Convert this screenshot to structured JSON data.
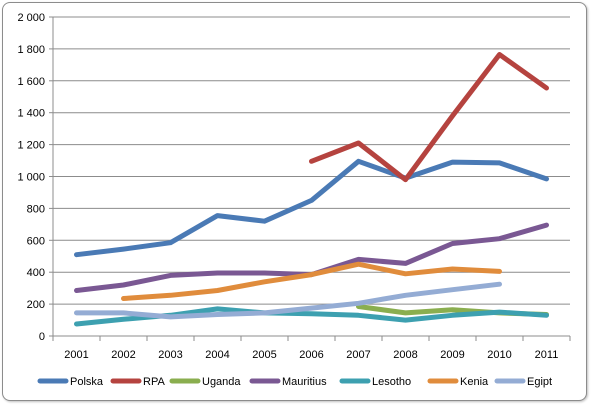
{
  "chart_data": {
    "type": "line",
    "title": "",
    "xlabel": "",
    "ylabel": "",
    "categories": [
      "2001",
      "2002",
      "2003",
      "2004",
      "2005",
      "2006",
      "2007",
      "2008",
      "2009",
      "2010",
      "2011"
    ],
    "ylim": [
      0,
      2000
    ],
    "yticks": [
      0,
      200,
      400,
      600,
      800,
      1000,
      1200,
      1400,
      1600,
      1800,
      2000
    ],
    "ytick_labels": [
      "0",
      "200",
      "400",
      "600",
      "800",
      "1 000",
      "1 200",
      "1 400",
      "1 600",
      "1 800",
      "2 000"
    ],
    "grid": "horizontal",
    "legend_position": "bottom",
    "series": [
      {
        "name": "Polska",
        "color": "#4a7ab5",
        "values": [
          510,
          545,
          585,
          755,
          720,
          850,
          1095,
          990,
          1090,
          1085,
          985
        ]
      },
      {
        "name": "RPA",
        "color": "#b5433f",
        "values": [
          null,
          null,
          null,
          null,
          null,
          1095,
          1210,
          980,
          1380,
          1765,
          1555
        ]
      },
      {
        "name": "Uganda",
        "color": "#8aae4f",
        "values": [
          null,
          null,
          null,
          null,
          null,
          null,
          185,
          145,
          165,
          145,
          135
        ]
      },
      {
        "name": "Mauritius",
        "color": "#7a5893",
        "values": [
          285,
          320,
          380,
          395,
          395,
          385,
          480,
          455,
          580,
          610,
          695
        ]
      },
      {
        "name": "Lesotho",
        "color": "#3da0b0",
        "values": [
          75,
          105,
          130,
          170,
          145,
          140,
          130,
          100,
          130,
          150,
          130
        ]
      },
      {
        "name": "Kenia",
        "color": "#e08c3c",
        "values": [
          null,
          235,
          255,
          285,
          340,
          385,
          450,
          390,
          420,
          405,
          null
        ]
      },
      {
        "name": "Egipt",
        "color": "#94acd4",
        "values": [
          145,
          145,
          120,
          135,
          145,
          175,
          205,
          255,
          290,
          325,
          null
        ]
      }
    ]
  }
}
